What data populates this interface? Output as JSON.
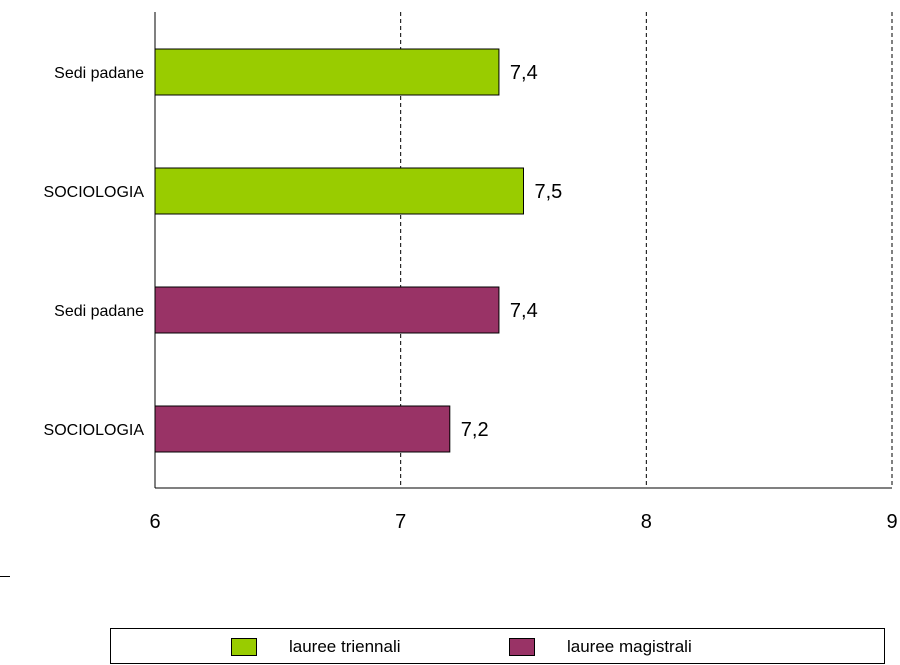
{
  "chart_data": {
    "type": "bar",
    "orientation": "horizontal",
    "categories": [
      "Sedi padane",
      "SOCIOLOGIA",
      "Sedi padane",
      "SOCIOLOGIA"
    ],
    "values": [
      7.4,
      7.5,
      7.4,
      7.2
    ],
    "value_labels": [
      "7,4",
      "7,5",
      "7,4",
      "7,2"
    ],
    "bar_series": [
      "lauree triennali",
      "lauree triennali",
      "lauree magistrali",
      "lauree magistrali"
    ],
    "series": [
      {
        "name": "lauree triennali",
        "color": "#99cc00"
      },
      {
        "name": "lauree magistrali",
        "color": "#993366"
      }
    ],
    "xlim": [
      6,
      9
    ],
    "x_ticks": [
      "6",
      "7",
      "8",
      "9"
    ],
    "grid": "vertical dashed",
    "legend_position": "bottom"
  }
}
